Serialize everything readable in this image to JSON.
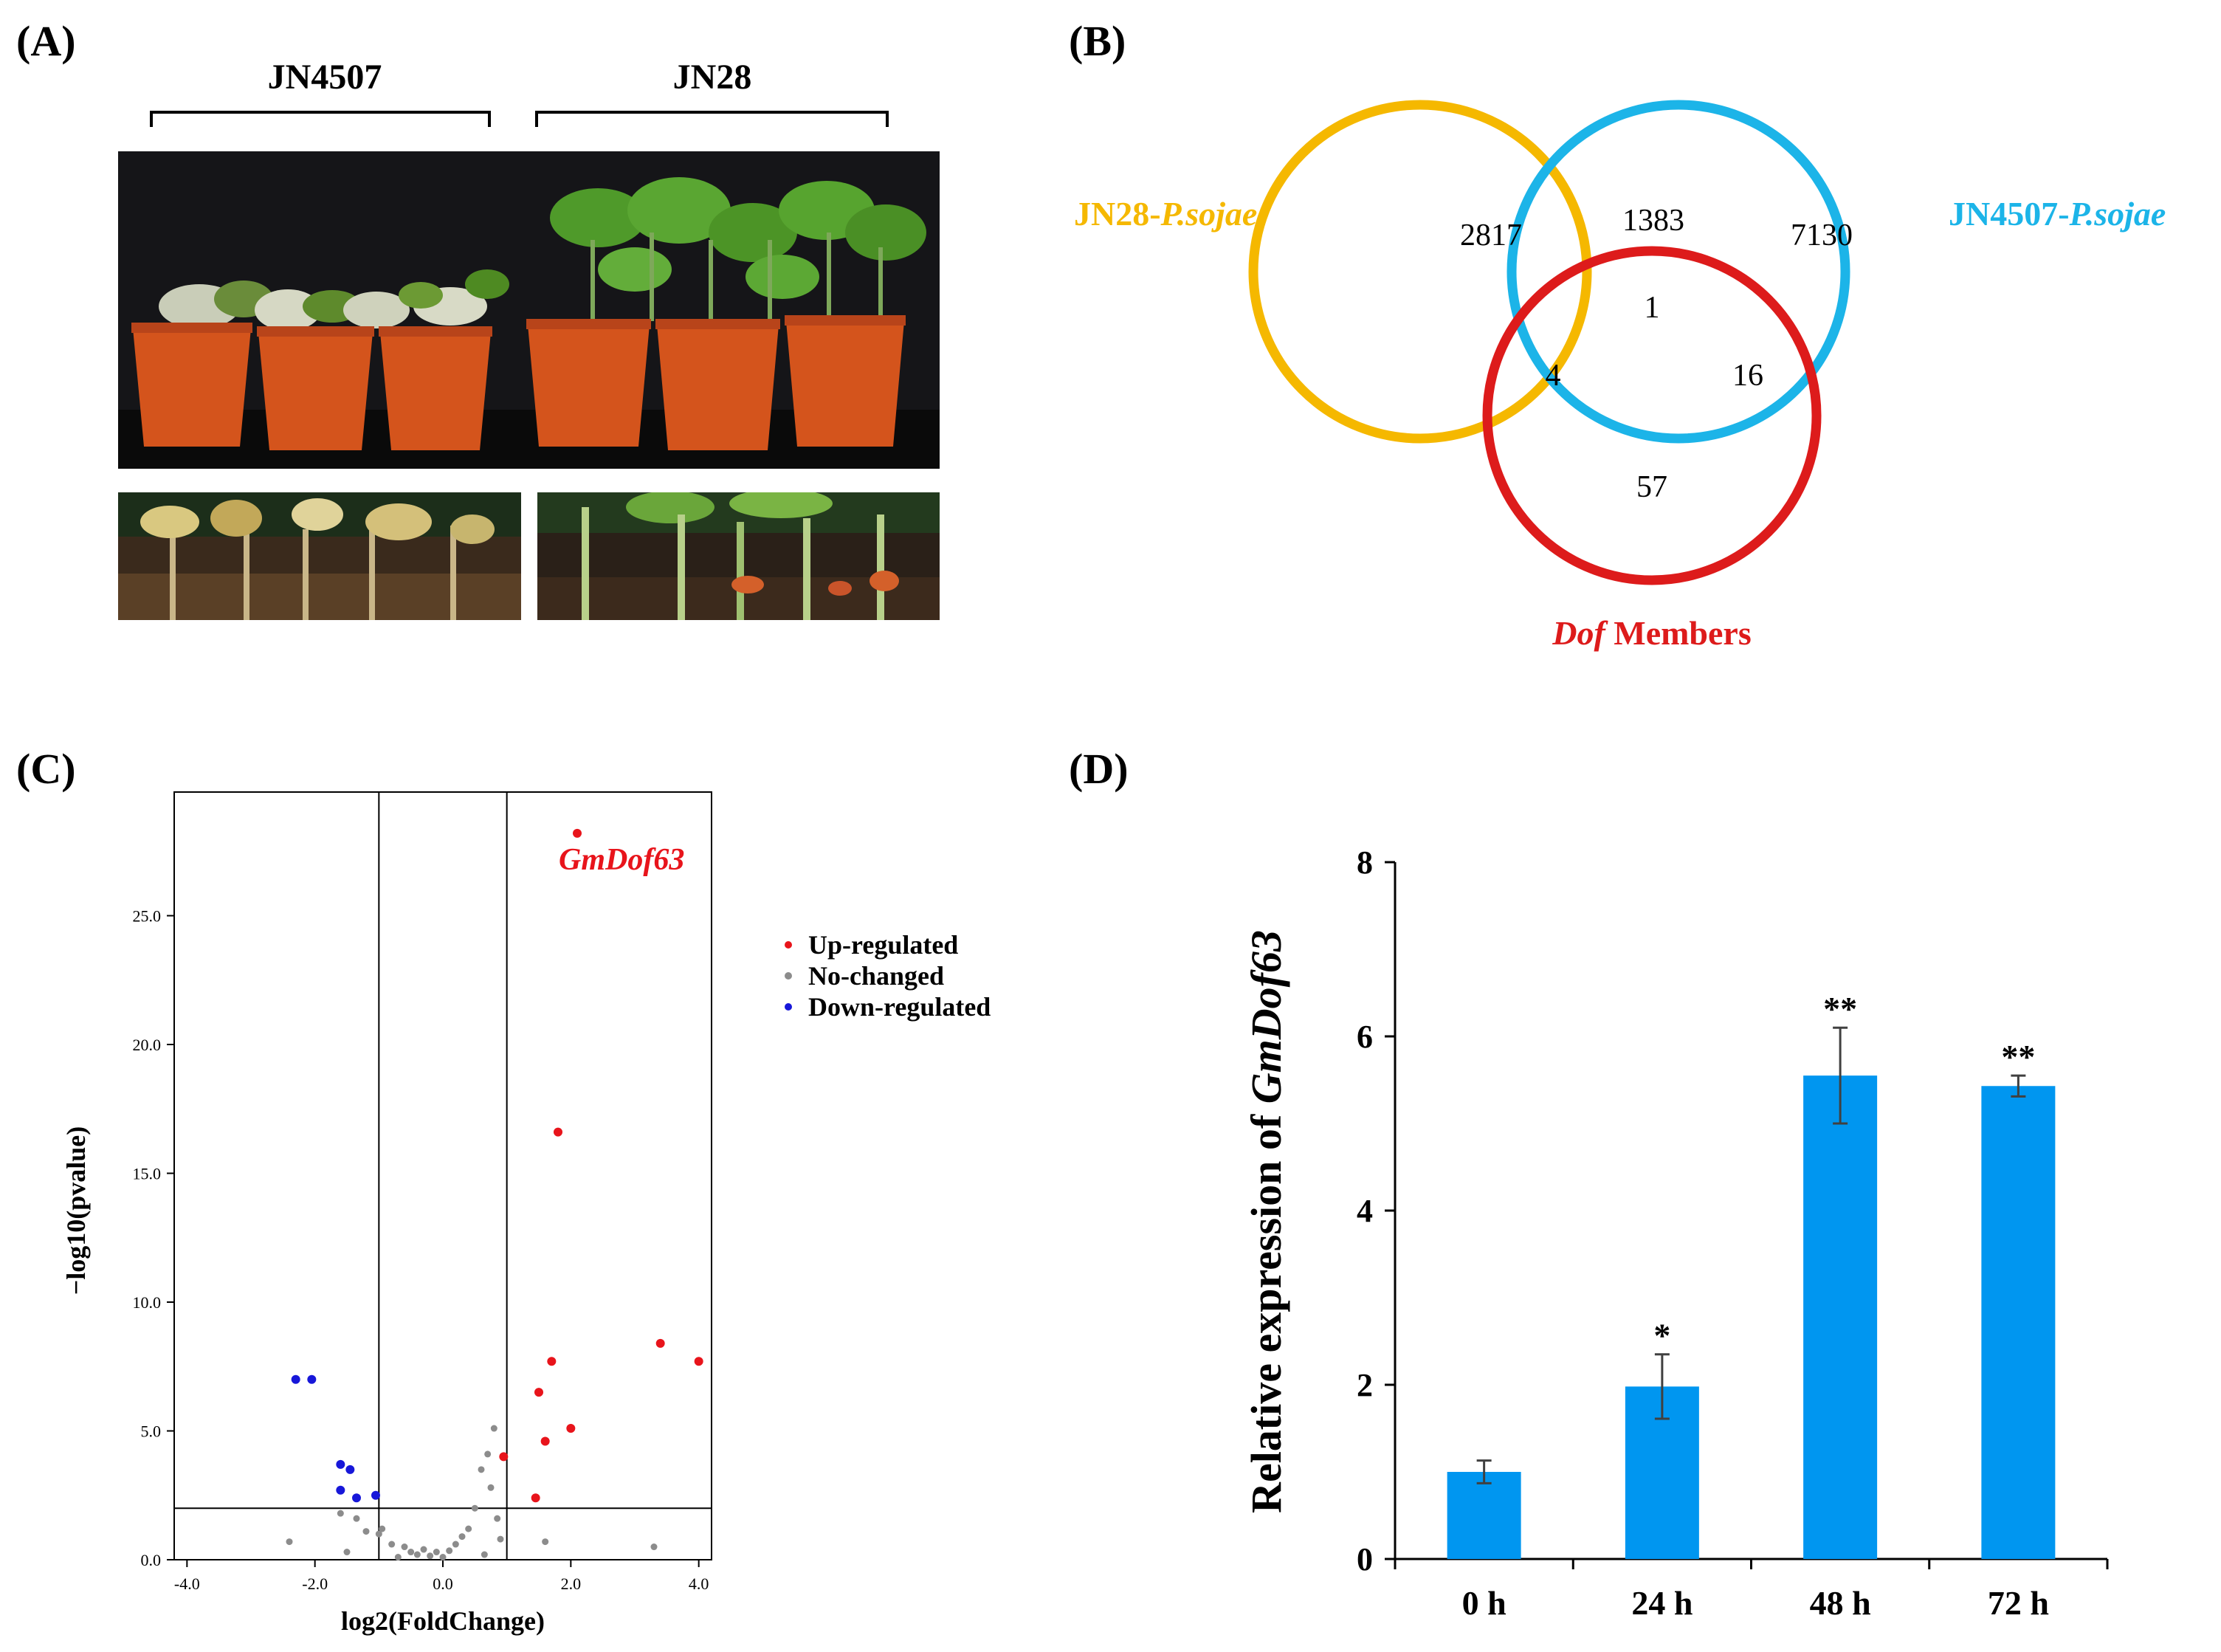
{
  "panels": {
    "a": {
      "label": "(A)",
      "groups": [
        "JN4507",
        "JN28"
      ]
    },
    "b": {
      "label": "(B)",
      "sets": {
        "jn28": {
          "prefix": "JN28-",
          "italic": "P.sojae",
          "color": "#F5B800"
        },
        "jn4507": {
          "prefix": "JN4507-",
          "italic": "P.sojae",
          "color": "#1CB4E8"
        },
        "dof": {
          "italic": "Dof",
          "suffix": " Members",
          "color": "#DD1B1B"
        }
      },
      "counts": {
        "jn28_only": "2817",
        "jn28_jn4507": "1383",
        "jn4507_only": "7130",
        "all_three": "1",
        "jn28_dof": "4",
        "jn4507_dof": "16",
        "dof_only": "57"
      }
    },
    "c": {
      "label": "(C)"
    },
    "d": {
      "label": "(D)"
    }
  },
  "chart_data": [
    {
      "id": "volcano",
      "type": "scatter",
      "xlabel": "log2(FoldChange)",
      "ylabel": "−log10(pvalue)",
      "xlim": [
        -4.2,
        4.2
      ],
      "ylim": [
        0,
        29.8
      ],
      "xticks": [
        "-4.0",
        "-2.0",
        "0.0",
        "2.0",
        "4.0"
      ],
      "xtick_values": [
        -4,
        -2,
        0,
        2,
        4
      ],
      "yticks": [
        "0.0",
        "5.0",
        "10.0",
        "15.0",
        "20.0",
        "25.0"
      ],
      "ytick_values": [
        0,
        5,
        10,
        15,
        20,
        25
      ],
      "threshold_x": [
        -1,
        1
      ],
      "threshold_y": 2,
      "annotation": {
        "text": "GmDof63",
        "x": 2.1,
        "y": 28.2
      },
      "legend": [
        "Up-regulated",
        "No-changed",
        "Down-regulated"
      ],
      "colors": {
        "up": "#E8141B",
        "none": "#8C8C8C",
        "down": "#1717D9"
      },
      "series": [
        {
          "name": "Up-regulated",
          "points": [
            [
              2.1,
              28.2
            ],
            [
              1.8,
              16.6
            ],
            [
              3.4,
              8.4
            ],
            [
              4.0,
              7.7
            ],
            [
              1.7,
              7.7
            ],
            [
              1.5,
              6.5
            ],
            [
              2.0,
              5.1
            ],
            [
              1.6,
              4.6
            ],
            [
              1.45,
              2.4
            ],
            [
              0.95,
              4.0
            ]
          ]
        },
        {
          "name": "No-changed",
          "points": [
            [
              -2.4,
              0.7
            ],
            [
              -1.6,
              1.8
            ],
            [
              -1.35,
              1.6
            ],
            [
              -1.2,
              1.1
            ],
            [
              -1.0,
              1.0
            ],
            [
              -0.95,
              1.2
            ],
            [
              -1.5,
              0.3
            ],
            [
              -0.6,
              0.5
            ],
            [
              -0.5,
              0.3
            ],
            [
              -0.4,
              0.2
            ],
            [
              -0.3,
              0.4
            ],
            [
              -0.2,
              0.15
            ],
            [
              -0.1,
              0.3
            ],
            [
              0.0,
              0.1
            ],
            [
              0.1,
              0.35
            ],
            [
              0.2,
              0.6
            ],
            [
              0.3,
              0.9
            ],
            [
              0.4,
              1.2
            ],
            [
              0.5,
              2.0
            ],
            [
              0.6,
              3.5
            ],
            [
              0.7,
              4.1
            ],
            [
              0.8,
              5.1
            ],
            [
              0.75,
              2.8
            ],
            [
              0.85,
              1.6
            ],
            [
              0.9,
              0.8
            ],
            [
              0.65,
              0.2
            ],
            [
              -0.7,
              0.1
            ],
            [
              -0.8,
              0.6
            ],
            [
              3.3,
              0.5
            ],
            [
              1.6,
              0.7
            ]
          ]
        },
        {
          "name": "Down-regulated",
          "points": [
            [
              -2.3,
              7.0
            ],
            [
              -2.05,
              7.0
            ],
            [
              -1.6,
              3.7
            ],
            [
              -1.45,
              3.5
            ],
            [
              -1.6,
              2.7
            ],
            [
              -1.35,
              2.4
            ],
            [
              -1.05,
              2.5
            ]
          ]
        }
      ]
    },
    {
      "id": "expression",
      "type": "bar",
      "ylabel_prefix": "Relative expression of ",
      "ylabel_italic": "GmDof63",
      "categories": [
        "0 h",
        "24 h",
        "48 h",
        "72 h"
      ],
      "values": [
        1.0,
        1.98,
        5.55,
        5.43
      ],
      "errors": [
        0.13,
        0.37,
        0.55,
        0.12
      ],
      "significance": [
        "",
        "*",
        "**",
        "**"
      ],
      "ylim": [
        0,
        8
      ],
      "yticks": [
        "0",
        "2",
        "4",
        "6",
        "8"
      ],
      "ytick_values": [
        0,
        2,
        4,
        6,
        8
      ],
      "bar_color": "#0096F0"
    }
  ]
}
